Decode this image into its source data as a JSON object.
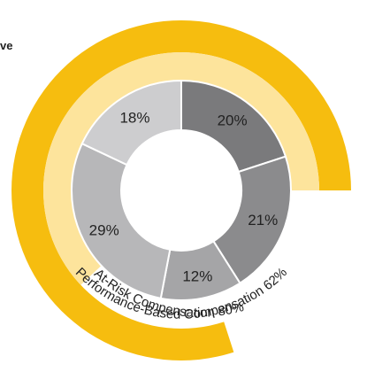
{
  "fragment_text": "ve",
  "chart_data": {
    "type": "pie",
    "donut": true,
    "segments": [
      {
        "label": "20%",
        "value": 20,
        "color": "#7a7a7c"
      },
      {
        "label": "21%",
        "value": 21,
        "color": "#8b8b8d"
      },
      {
        "label": "12%",
        "value": 12,
        "color": "#a5a5a7"
      },
      {
        "label": "29%",
        "value": 29,
        "color": "#b7b7b9"
      },
      {
        "label": "18%",
        "value": 18,
        "color": "#cdcdcf"
      }
    ],
    "arcs": [
      {
        "label": "Performance-Based Compensation 62%",
        "value": 62,
        "color": "#fde49c"
      },
      {
        "label": "At-Risk Compensation 80%",
        "value": 80,
        "color": "#f6bd0f"
      }
    ]
  }
}
